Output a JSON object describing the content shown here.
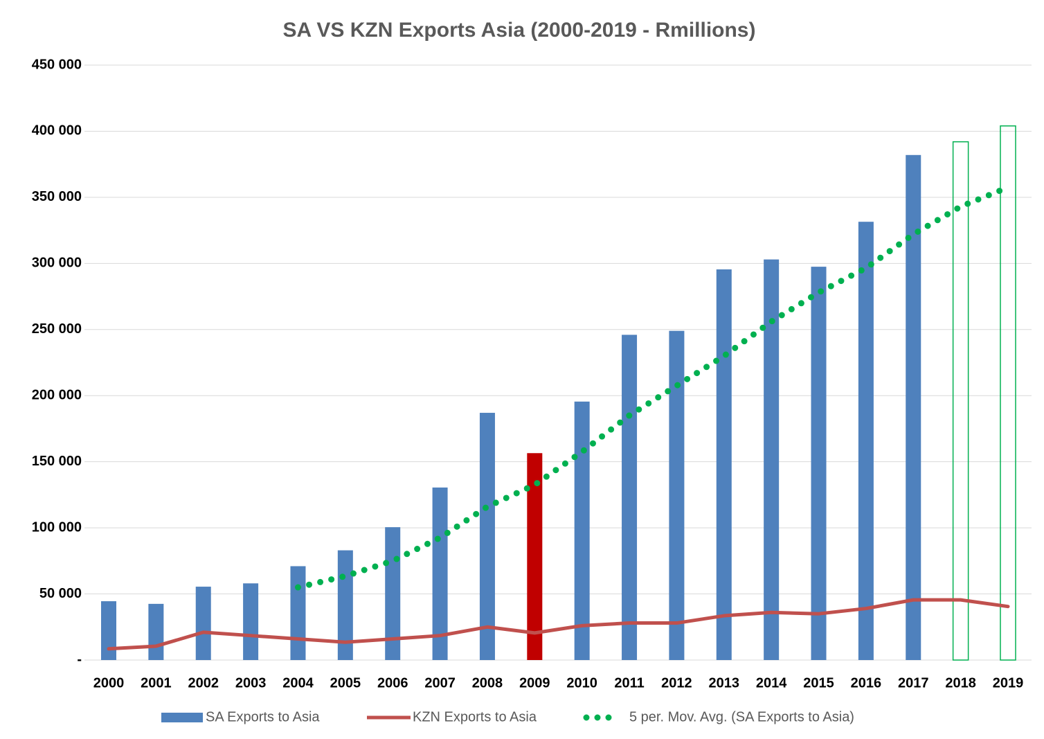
{
  "chart_data": {
    "type": "bar",
    "title": "SA VS KZN Exports Asia (2000-2019 - Rmillions)",
    "categories": [
      "2000",
      "2001",
      "2002",
      "2003",
      "2004",
      "2005",
      "2006",
      "2007",
      "2008",
      "2009",
      "2010",
      "2011",
      "2012",
      "2013",
      "2014",
      "2015",
      "2016",
      "2017",
      "2018",
      "2019"
    ],
    "series": [
      {
        "name": "SA Exports to Asia",
        "type": "bar",
        "color": "#4f81bd",
        "colors": [
          "#4f81bd",
          "#4f81bd",
          "#4f81bd",
          "#4f81bd",
          "#4f81bd",
          "#4f81bd",
          "#4f81bd",
          "#4f81bd",
          "#4f81bd",
          "#c00000",
          "#4f81bd",
          "#4f81bd",
          "#4f81bd",
          "#4f81bd",
          "#4f81bd",
          "#4f81bd",
          "#4f81bd",
          "#4f81bd",
          "#00b050",
          "#00b050"
        ],
        "outlined": [
          false,
          false,
          false,
          false,
          false,
          false,
          false,
          false,
          false,
          false,
          false,
          false,
          false,
          false,
          false,
          false,
          false,
          false,
          true,
          true
        ],
        "values": [
          44500,
          42500,
          55500,
          58000,
          71000,
          83000,
          100500,
          130500,
          187000,
          156500,
          195500,
          246000,
          249000,
          295500,
          303000,
          297500,
          331500,
          382000,
          392000,
          404000
        ]
      },
      {
        "name": "KZN Exports to Asia",
        "type": "line",
        "color": "#c0504d",
        "values": [
          8500,
          10500,
          21000,
          18500,
          16000,
          13500,
          16000,
          18500,
          25000,
          20500,
          26000,
          28000,
          28000,
          33500,
          36000,
          35000,
          39000,
          45500,
          45500,
          40500
        ]
      },
      {
        "name": "5 per. Mov. Avg. (SA Exports to Asia)",
        "type": "dotted-line",
        "color": "#00b050",
        "values": [
          null,
          null,
          null,
          null,
          55000,
          63500,
          75000,
          92500,
          116000,
          132500,
          157500,
          185000,
          207500,
          230000,
          256000,
          278000,
          296500,
          322000,
          343000,
          357500
        ]
      }
    ],
    "ylim": [
      0,
      450000
    ],
    "yticks": [
      {
        "value": 0,
        "label": "-"
      },
      {
        "value": 50000,
        "label": "50 000"
      },
      {
        "value": 100000,
        "label": "100 000"
      },
      {
        "value": 150000,
        "label": "150 000"
      },
      {
        "value": 200000,
        "label": "200 000"
      },
      {
        "value": 250000,
        "label": "250 000"
      },
      {
        "value": 300000,
        "label": "300 000"
      },
      {
        "value": 350000,
        "label": "350 000"
      },
      {
        "value": 400000,
        "label": "400 000"
      },
      {
        "value": 450000,
        "label": "450 000"
      }
    ],
    "grid": true,
    "legend": "bottom"
  }
}
